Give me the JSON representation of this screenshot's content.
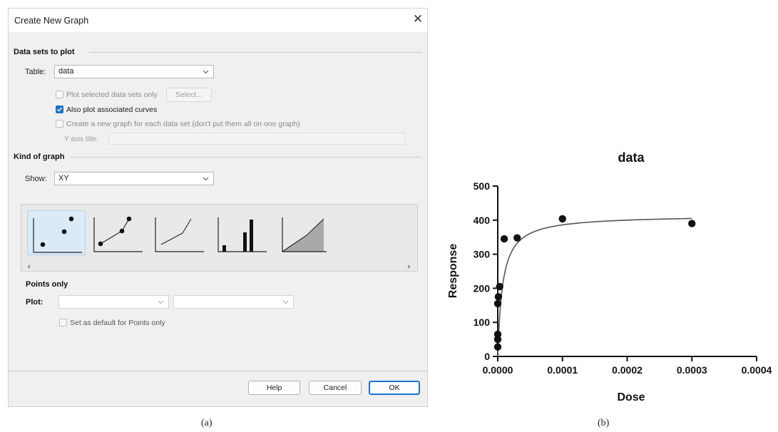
{
  "dialog": {
    "title": "Create New Graph",
    "close_glyph": "✕",
    "data_sets_section": "Data sets to plot",
    "table_label": "Table:",
    "table_value": "data",
    "plot_selected_label": "Plot selected data sets only",
    "plot_selected_checked": false,
    "select_button": "Select...",
    "also_plot_curves_label": "Also plot associated curves",
    "also_plot_curves_checked": true,
    "new_graph_each_label": "Create a new graph for each data set (don't put them all on one graph)",
    "new_graph_each_checked": false,
    "y_axis_title_label": "Y axis title:",
    "y_axis_title_value": "",
    "kind_section": "Kind of graph",
    "show_label": "Show:",
    "show_value": "XY",
    "gallery": {
      "items": [
        {
          "icon": "points-only-icon",
          "selected": true
        },
        {
          "icon": "points-and-connecting-line-icon",
          "selected": false
        },
        {
          "icon": "line-only-icon",
          "selected": false
        },
        {
          "icon": "spikes-icon",
          "selected": false
        },
        {
          "icon": "area-fill-icon",
          "selected": false
        }
      ]
    },
    "points_only_heading": "Points only",
    "plot_label": "Plot:",
    "plot_value_1": "",
    "plot_value_2": "",
    "set_default_label": "Set as default for Points only",
    "set_default_checked": false,
    "buttons": {
      "help": "Help",
      "cancel": "Cancel",
      "ok": "OK"
    },
    "accent": "#1a73c8"
  },
  "captions": {
    "a": "(a)",
    "b": "(b)"
  },
  "chart_data": {
    "type": "scatter",
    "title": "data",
    "xlabel": "Dose",
    "ylabel": "Response",
    "xlim": [
      0,
      0.0004
    ],
    "ylim": [
      0,
      500
    ],
    "xticks": [
      "0.0000",
      "0.0001",
      "0.0002",
      "0.0003",
      "0.0004"
    ],
    "yticks": [
      "0",
      "100",
      "200",
      "300",
      "400",
      "500"
    ],
    "grid": false,
    "series": [
      {
        "points": [
          {
            "x": 0.0,
            "y": 28
          },
          {
            "x": 0.0,
            "y": 50
          },
          {
            "x": 0.0,
            "y": 65
          },
          {
            "x": 0.0,
            "y": 155
          },
          {
            "x": 1e-06,
            "y": 175
          },
          {
            "x": 3e-06,
            "y": 205
          },
          {
            "x": 1e-05,
            "y": 345
          },
          {
            "x": 3e-05,
            "y": 348
          },
          {
            "x": 0.0001,
            "y": 404
          },
          {
            "x": 0.0003,
            "y": 390
          }
        ]
      }
    ],
    "fit_curve": {
      "top": 415,
      "ec50": 7.5e-06,
      "x_end": 0.0003
    }
  }
}
